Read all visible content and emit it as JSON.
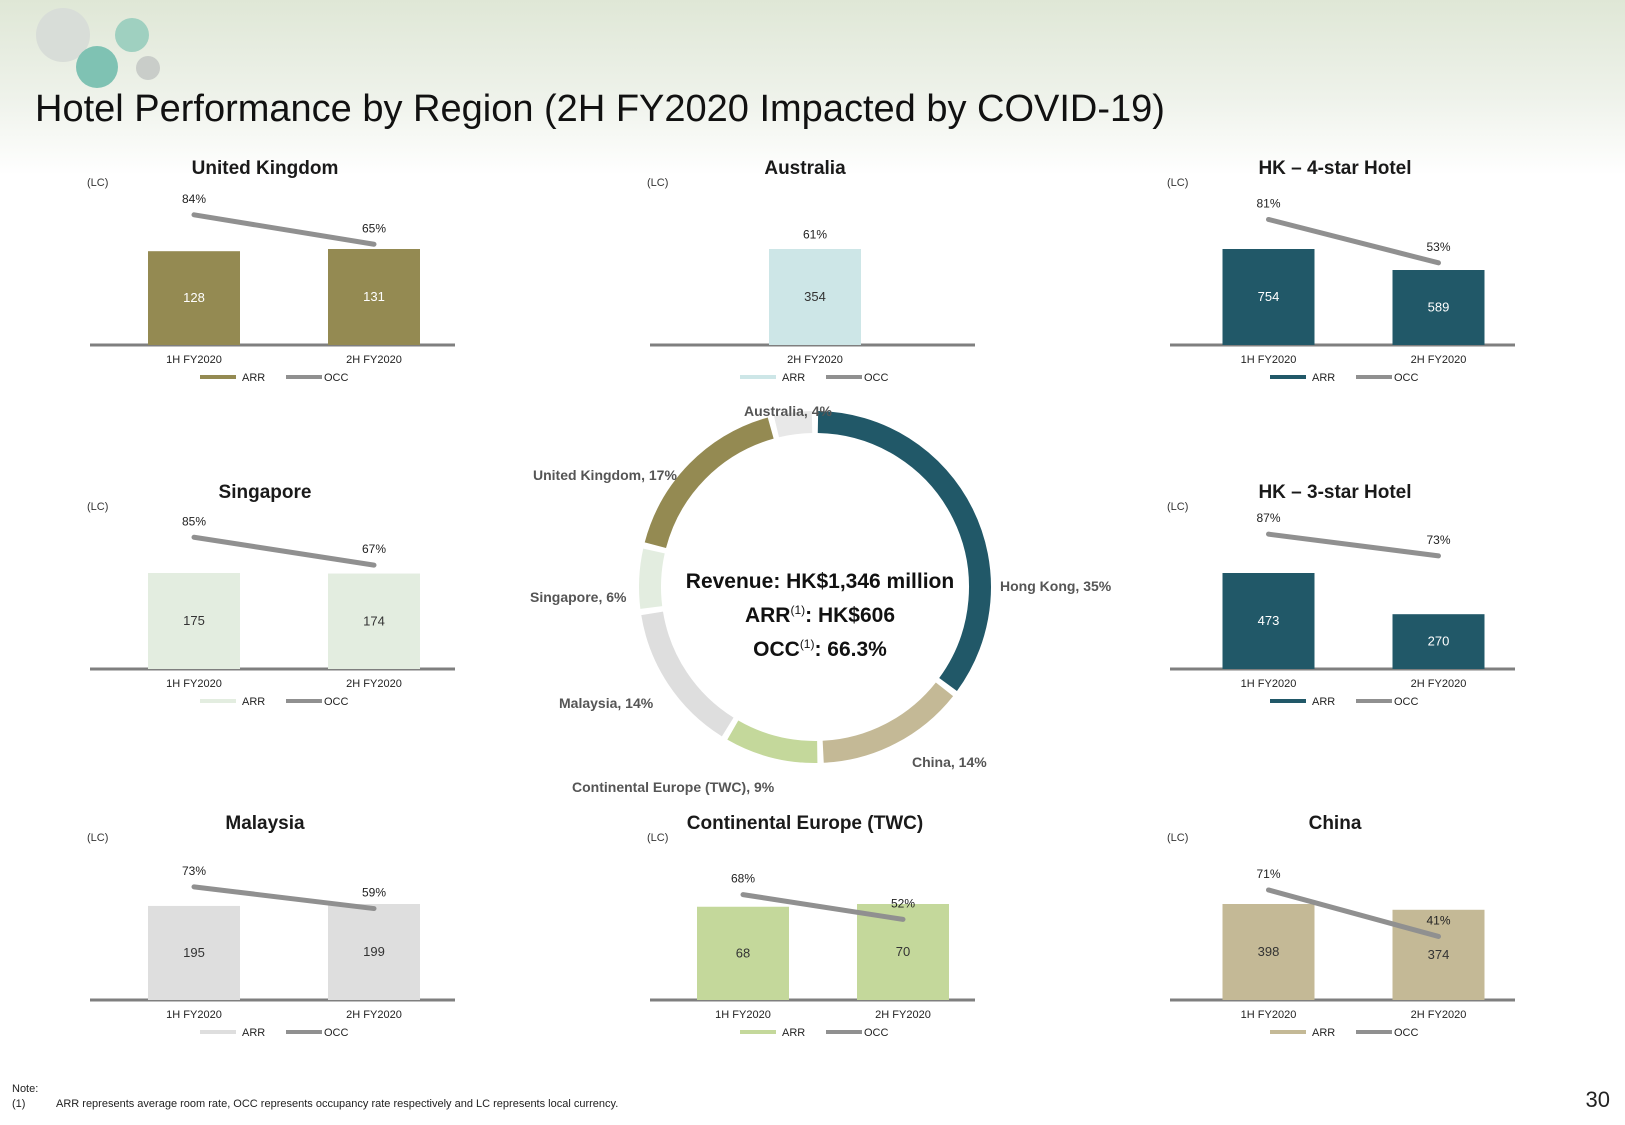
{
  "title": "Hotel Performance by Region (2H FY2020 Impacted by COVID-19)",
  "page_number": "30",
  "center": {
    "revenue": "Revenue: HK$1,346 million",
    "arr_prefix": "ARR",
    "arr_value": ": HK$606",
    "occ_prefix": "OCC",
    "occ_value": ": 66.3%",
    "footnote_mark": "(1)"
  },
  "notes": {
    "heading": "Note:",
    "marker": "(1)",
    "text": "ARR represents average room rate, OCC represents occupancy rate respectively and LC represents local currency."
  },
  "colors": {
    "uk": "#948a52",
    "australia": "#cde6e7",
    "hk": "#215868",
    "singapore": "#e3ede0",
    "malaysia": "#dedede",
    "europe": "#c4d89b",
    "china": "#c4b996",
    "occ_line": "#909090",
    "axis": "#7f7f7f"
  },
  "chart_data": [
    {
      "id": "uk",
      "type": "bar",
      "title": "United Kingdom",
      "unit_label": "(LC)",
      "categories": [
        "1H FY2020",
        "2H FY2020"
      ],
      "series": [
        {
          "name": "ARR",
          "type": "bar",
          "values": [
            128,
            131
          ],
          "value_labels": [
            "128",
            "131"
          ]
        },
        {
          "name": "OCC",
          "type": "line",
          "values": [
            84,
            65
          ],
          "value_labels": [
            "84%",
            "65%"
          ]
        }
      ],
      "legend": [
        "ARR",
        "OCC"
      ],
      "legend_position": "bottom"
    },
    {
      "id": "australia",
      "type": "bar",
      "title": "Australia",
      "unit_label": "(LC)",
      "categories": [
        "2H FY2020"
      ],
      "series": [
        {
          "name": "ARR",
          "type": "bar",
          "values": [
            354
          ],
          "value_labels": [
            "354"
          ]
        },
        {
          "name": "OCC",
          "type": "line",
          "values": [
            61
          ],
          "value_labels": [
            "61%"
          ]
        }
      ],
      "legend": [
        "ARR",
        "OCC"
      ],
      "legend_position": "bottom"
    },
    {
      "id": "hk4",
      "type": "bar",
      "title": "HK – 4-star Hotel",
      "unit_label": "(LC)",
      "categories": [
        "1H FY2020",
        "2H FY2020"
      ],
      "series": [
        {
          "name": "ARR",
          "type": "bar",
          "values": [
            754,
            589
          ],
          "value_labels": [
            "754",
            "589"
          ]
        },
        {
          "name": "OCC",
          "type": "line",
          "values": [
            81,
            53
          ],
          "value_labels": [
            "81%",
            "53%"
          ]
        }
      ],
      "legend": [
        "ARR",
        "OCC"
      ],
      "legend_position": "bottom"
    },
    {
      "id": "singapore",
      "type": "bar",
      "title": "Singapore",
      "unit_label": "(LC)",
      "categories": [
        "1H FY2020",
        "2H FY2020"
      ],
      "series": [
        {
          "name": "ARR",
          "type": "bar",
          "values": [
            175,
            174
          ],
          "value_labels": [
            "175",
            "174"
          ]
        },
        {
          "name": "OCC",
          "type": "line",
          "values": [
            85,
            67
          ],
          "value_labels": [
            "85%",
            "67%"
          ]
        }
      ],
      "legend": [
        "ARR",
        "OCC"
      ],
      "legend_position": "bottom"
    },
    {
      "id": "hk3",
      "type": "bar",
      "title": "HK – 3-star Hotel",
      "unit_label": "(LC)",
      "categories": [
        "1H FY2020",
        "2H FY2020"
      ],
      "series": [
        {
          "name": "ARR",
          "type": "bar",
          "values": [
            473,
            270
          ],
          "value_labels": [
            "473",
            "270"
          ]
        },
        {
          "name": "OCC",
          "type": "line",
          "values": [
            87,
            73
          ],
          "value_labels": [
            "87%",
            "73%"
          ]
        }
      ],
      "legend": [
        "ARR",
        "OCC"
      ],
      "legend_position": "bottom"
    },
    {
      "id": "malaysia",
      "type": "bar",
      "title": "Malaysia",
      "unit_label": "(LC)",
      "categories": [
        "1H FY2020",
        "2H FY2020"
      ],
      "series": [
        {
          "name": "ARR",
          "type": "bar",
          "values": [
            195,
            199
          ],
          "value_labels": [
            "195",
            "199"
          ]
        },
        {
          "name": "OCC",
          "type": "line",
          "values": [
            73,
            59
          ],
          "value_labels": [
            "73%",
            "59%"
          ]
        }
      ],
      "legend": [
        "ARR",
        "OCC"
      ],
      "legend_position": "bottom"
    },
    {
      "id": "europe",
      "type": "bar",
      "title": "Continental Europe (TWC)",
      "unit_label": "(LC)",
      "categories": [
        "1H FY2020",
        "2H FY2020"
      ],
      "series": [
        {
          "name": "ARR",
          "type": "bar",
          "values": [
            68,
            70
          ],
          "value_labels": [
            "68",
            "70"
          ]
        },
        {
          "name": "OCC",
          "type": "line",
          "values": [
            68,
            52
          ],
          "value_labels": [
            "68%",
            "52%"
          ]
        }
      ],
      "legend": [
        "ARR",
        "OCC"
      ],
      "legend_position": "bottom"
    },
    {
      "id": "china",
      "type": "bar",
      "title": "China",
      "unit_label": "(LC)",
      "categories": [
        "1H FY2020",
        "2H FY2020"
      ],
      "series": [
        {
          "name": "ARR",
          "type": "bar",
          "values": [
            398,
            374
          ],
          "value_labels": [
            "398",
            "374"
          ]
        },
        {
          "name": "OCC",
          "type": "line",
          "values": [
            71,
            41
          ],
          "value_labels": [
            "71%",
            "41%"
          ]
        }
      ],
      "legend": [
        "ARR",
        "OCC"
      ],
      "legend_position": "bottom"
    },
    {
      "id": "revenue-donut",
      "type": "pie",
      "subtype": "donut",
      "slices": [
        {
          "name": "Hong Kong",
          "value": 35,
          "label": "Hong Kong, 35%"
        },
        {
          "name": "China",
          "value": 14,
          "label": "China, 14%"
        },
        {
          "name": "Continental Europe (TWC)",
          "value": 9,
          "label": "Continental Europe (TWC), 9%"
        },
        {
          "name": "Malaysia",
          "value": 14,
          "label": "Malaysia, 14%"
        },
        {
          "name": "Singapore",
          "value": 6,
          "label": "Singapore, 6%"
        },
        {
          "name": "United Kingdom",
          "value": 17,
          "label": "United Kingdom, 17%"
        },
        {
          "name": "Australia",
          "value": 4,
          "label": "Australia, 4%"
        }
      ]
    }
  ]
}
